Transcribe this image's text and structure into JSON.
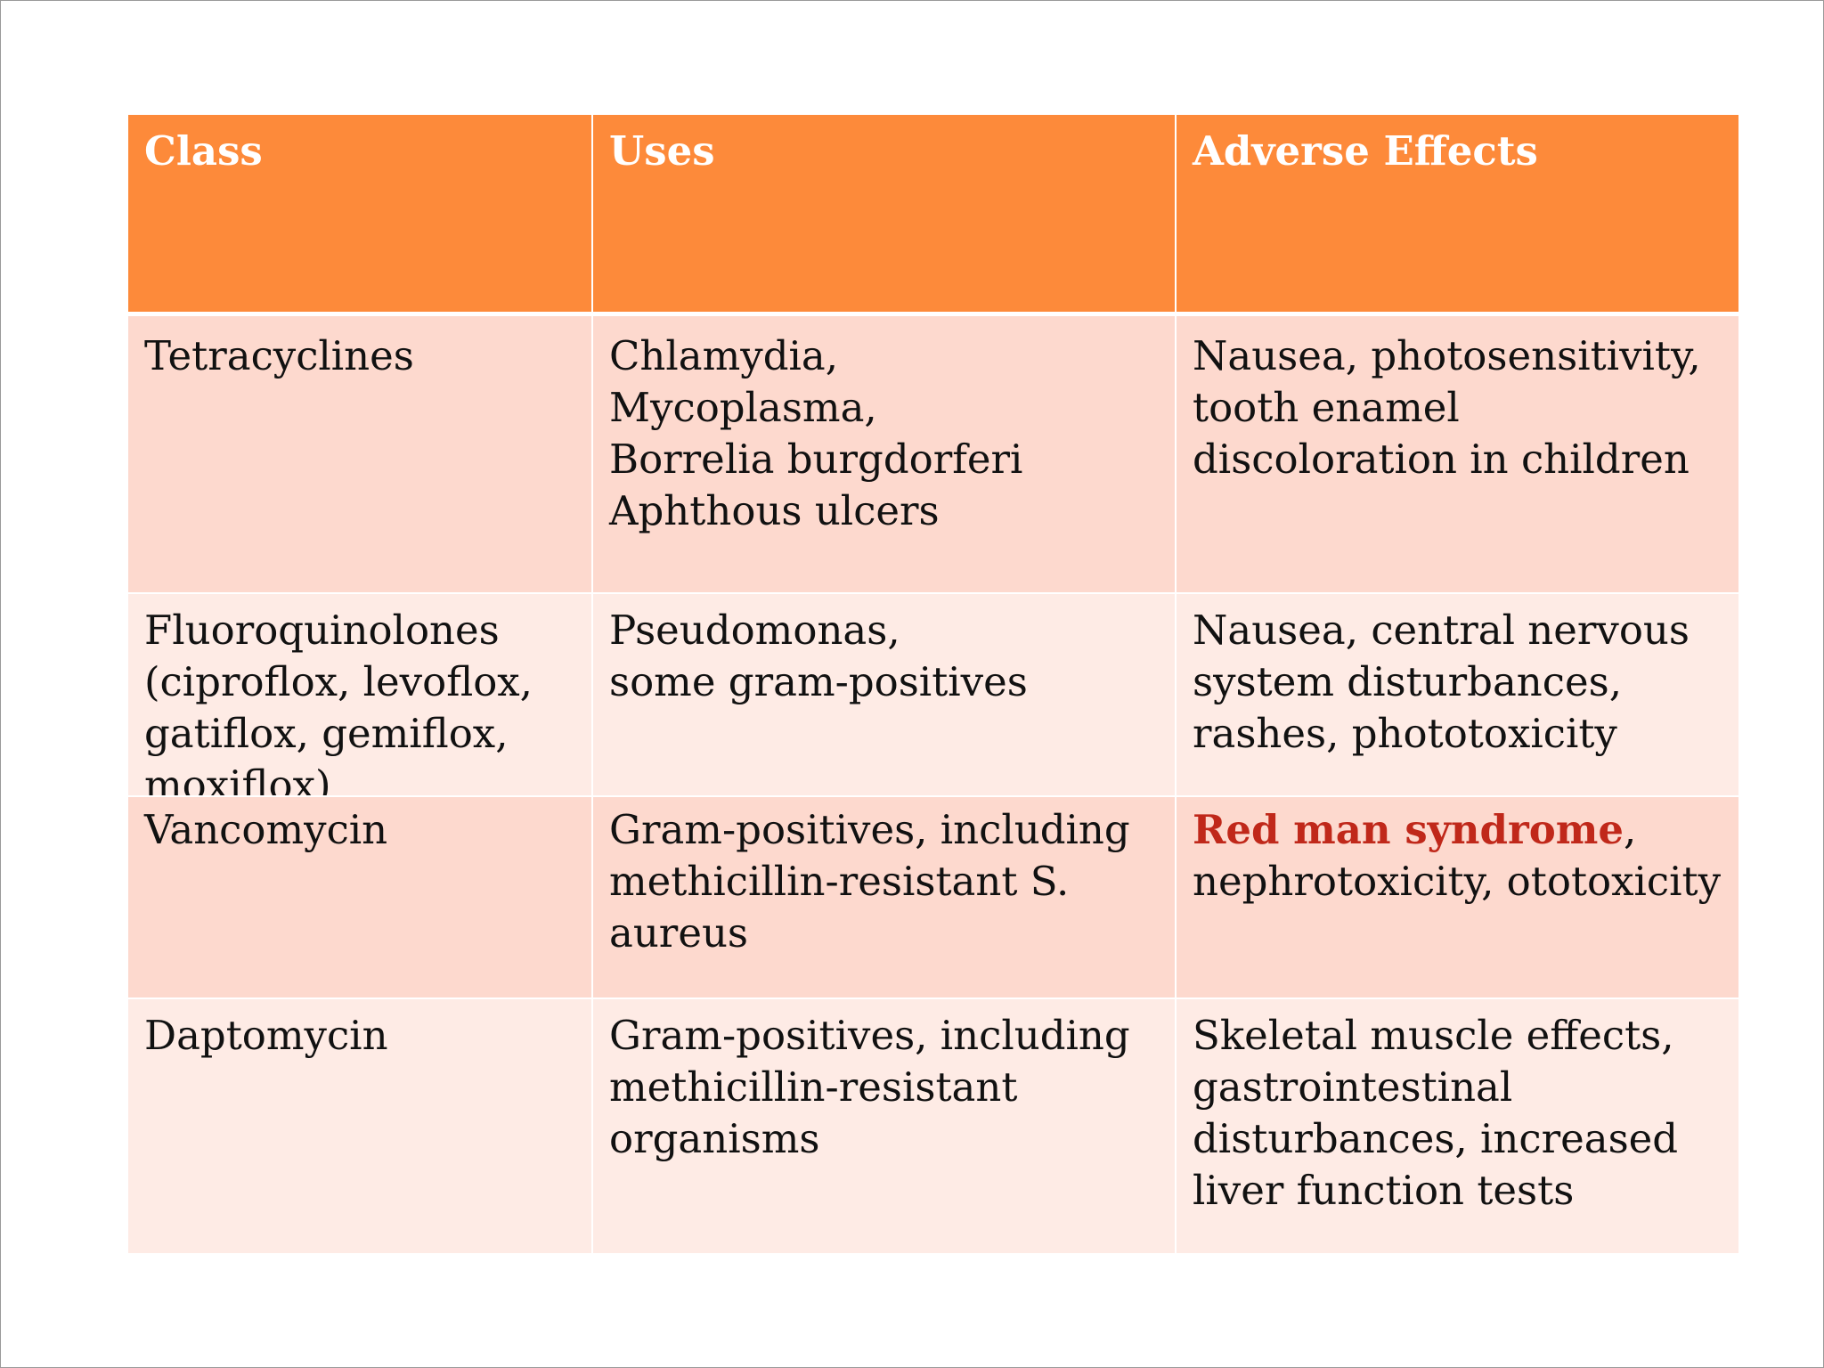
{
  "table": {
    "headers": [
      "Class",
      "Uses",
      "Adverse Effects"
    ],
    "rows": [
      {
        "class": "Tetracyclines",
        "uses": "Chlamydia,\nMycoplasma,\nBorrelia burgdorferi\nAphthous ulcers",
        "adverse": "Nausea, photosensitivity, tooth enamel discoloration in children"
      },
      {
        "class": "Fluoroquinolones (ciproflox, levoflox, gatiflox, gemiflox, moxiflox)",
        "uses": "Pseudomonas,\nsome gram-positives",
        "adverse": "Nausea, central nervous system disturbances, rashes, phototoxicity"
      },
      {
        "class": "Vancomycin",
        "uses": "Gram-positives, including methicillin-resistant S. aureus",
        "adverse_highlight": "Red man syndrome",
        "adverse_rest": ", nephrotoxicity, ototoxicity"
      },
      {
        "class": "Daptomycin",
        "uses": "Gram-positives, including methicillin-resistant organisms",
        "adverse": "Skeletal muscle effects, gastrointestinal disturbances, increased liver function tests"
      }
    ]
  },
  "colors": {
    "header_bg": "#fd8a3a",
    "row_dark": "#fdd9ce",
    "row_light": "#feebe5",
    "highlight_text": "#c0281a"
  }
}
